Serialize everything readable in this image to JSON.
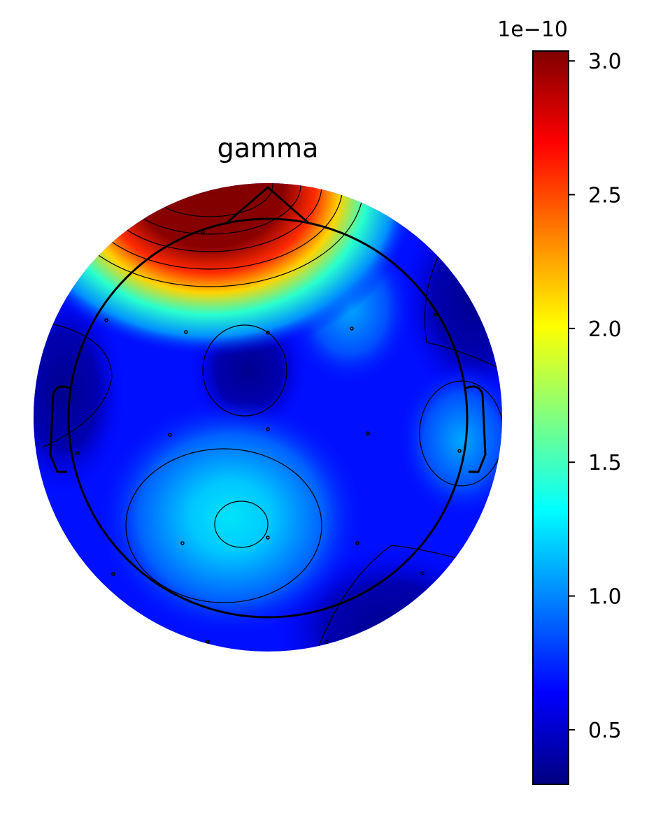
{
  "chart_data": {
    "type": "topomap",
    "title": "gamma",
    "colormap": "jet",
    "clim": [
      0.296,
      3.037
    ],
    "colorbar_ticks": [
      0.5,
      {
        "value": 1.0,
        "label": "1.0"
      },
      1.5,
      {
        "value": 2.0,
        "label": "2.0"
      },
      2.5,
      {
        "value": 3.0,
        "label": "3.0"
      }
    ],
    "colorbar_offset_label": "1e−10"
  }
}
